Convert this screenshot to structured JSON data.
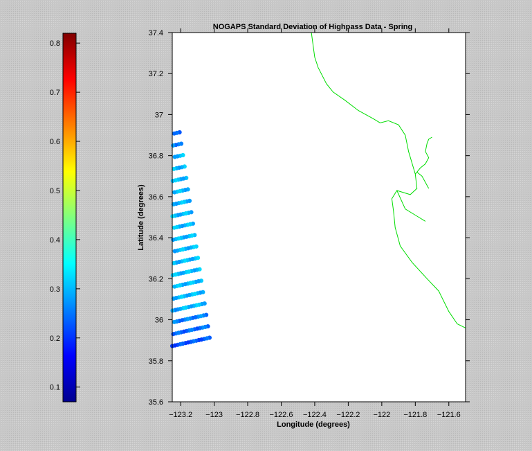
{
  "chart_data": {
    "type": "scatter",
    "title": "NOGAPS Standard Deviation of Highpass Data - Spring",
    "xlabel": "Longitude (degrees)",
    "ylabel": "Latitude (degrees)",
    "xlim": [
      -123.25,
      -121.5
    ],
    "ylim": [
      35.6,
      37.4
    ],
    "xticks": [
      -123.2,
      -123,
      -122.8,
      -122.6,
      -122.4,
      -122.2,
      -122,
      -121.8,
      -121.6
    ],
    "xtick_labels": [
      "−123.2",
      "−123",
      "−122.8",
      "−122.6",
      "−122.4",
      "−122.2",
      "−122",
      "−121.8",
      "−121.6"
    ],
    "yticks": [
      35.6,
      35.8,
      36,
      36.2,
      36.4,
      36.6,
      36.8,
      37,
      37.2,
      37.4
    ],
    "ytick_labels": [
      "35.6",
      "35.8",
      "36",
      "36.2",
      "36.4",
      "36.6",
      "36.8",
      "37",
      "37.2",
      "37.4"
    ],
    "colorbar": {
      "colormap": "jet",
      "range": [
        0.07,
        0.82
      ],
      "ticks": [
        0.1,
        0.2,
        0.3,
        0.4,
        0.5,
        0.6,
        0.7,
        0.8
      ],
      "tick_labels": [
        "0.1",
        "0.2",
        "0.3",
        "0.4",
        "0.5",
        "0.6",
        "0.7",
        "0.8"
      ]
    },
    "grid_origin": [
      -123.22,
      36.9
    ],
    "radial_bearing_deg": 162,
    "arc_curvature": 0.038,
    "radial_spacing_deg": 0.045,
    "arc_spacing_deg": 0.022,
    "coastline": [
      [
        -122.42,
        37.4
      ],
      [
        -122.41,
        37.34
      ],
      [
        -122.4,
        37.28
      ],
      [
        -122.38,
        37.23
      ],
      [
        -122.33,
        37.15
      ],
      [
        -122.29,
        37.11
      ],
      [
        -122.22,
        37.07
      ],
      [
        -122.14,
        37.02
      ],
      [
        -122.05,
        36.98
      ],
      [
        -122.01,
        36.96
      ],
      [
        -121.96,
        36.97
      ],
      [
        -121.9,
        36.95
      ],
      [
        -121.86,
        36.9
      ],
      [
        -121.84,
        36.82
      ],
      [
        -121.8,
        36.71
      ],
      [
        -121.79,
        36.64
      ],
      [
        -121.83,
        36.61
      ],
      [
        -121.91,
        36.63
      ],
      [
        -121.94,
        36.59
      ],
      [
        -121.93,
        36.53
      ],
      [
        -121.92,
        36.45
      ],
      [
        -121.89,
        36.36
      ],
      [
        -121.82,
        36.28
      ],
      [
        -121.73,
        36.2
      ],
      [
        -121.66,
        36.14
      ],
      [
        -121.6,
        36.04
      ],
      [
        -121.55,
        35.98
      ],
      [
        -121.5,
        35.96
      ]
    ],
    "inland_lines": [
      [
        [
          -121.8,
          36.71
        ],
        [
          -121.77,
          36.74
        ],
        [
          -121.74,
          36.76
        ],
        [
          -121.72,
          36.79
        ],
        [
          -121.74,
          36.82
        ],
        [
          -121.73,
          36.86
        ],
        [
          -121.72,
          36.88
        ],
        [
          -121.7,
          36.89
        ]
      ],
      [
        [
          -121.79,
          36.72
        ],
        [
          -121.76,
          36.7
        ],
        [
          -121.74,
          36.67
        ],
        [
          -121.72,
          36.64
        ]
      ],
      [
        [
          -121.91,
          36.63
        ],
        [
          -121.86,
          36.54
        ],
        [
          -121.8,
          36.51
        ],
        [
          -121.74,
          36.48
        ]
      ]
    ],
    "coastline_color": "#00dd00"
  }
}
